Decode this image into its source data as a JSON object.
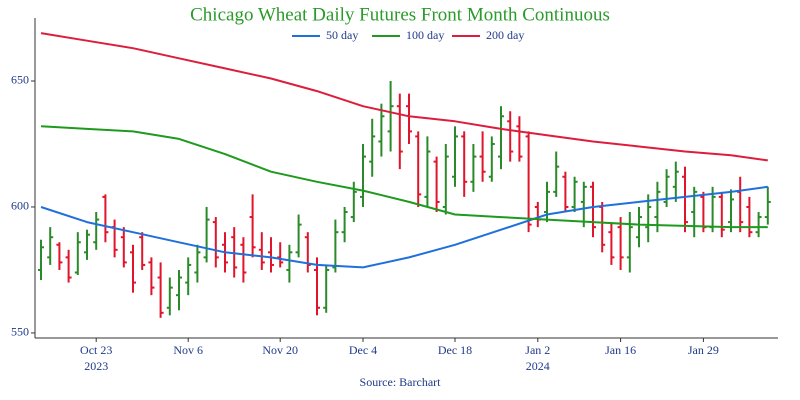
{
  "chart_data": {
    "type": "ohlc",
    "title": "Chicago Wheat Daily Futures Front Month Continuous",
    "source": "Source: Barchart",
    "up_color": "#2a8a2a",
    "down_color": "#e0142a",
    "categories": [
      "2023-10-13",
      "2023-10-16",
      "2023-10-17",
      "2023-10-18",
      "2023-10-19",
      "2023-10-20",
      "2023-10-23",
      "2023-10-24",
      "2023-10-25",
      "2023-10-26",
      "2023-10-27",
      "2023-10-30",
      "2023-10-31",
      "2023-11-01",
      "2023-11-02",
      "2023-11-03",
      "2023-11-06",
      "2023-11-07",
      "2023-11-08",
      "2023-11-09",
      "2023-11-10",
      "2023-11-13",
      "2023-11-14",
      "2023-11-15",
      "2023-11-16",
      "2023-11-17",
      "2023-11-20",
      "2023-11-21",
      "2023-11-22",
      "2023-11-24",
      "2023-11-27",
      "2023-11-28",
      "2023-11-29",
      "2023-11-30",
      "2023-12-01",
      "2023-12-04",
      "2023-12-05",
      "2023-12-06",
      "2023-12-07",
      "2023-12-08",
      "2023-12-11",
      "2023-12-12",
      "2023-12-13",
      "2023-12-14",
      "2023-12-15",
      "2023-12-18",
      "2023-12-19",
      "2023-12-20",
      "2023-12-21",
      "2023-12-22",
      "2023-12-26",
      "2023-12-27",
      "2023-12-28",
      "2023-12-29",
      "2024-01-02",
      "2024-01-03",
      "2024-01-04",
      "2024-01-05",
      "2024-01-08",
      "2024-01-09",
      "2024-01-10",
      "2024-01-11",
      "2024-01-12",
      "2024-01-16",
      "2024-01-17",
      "2024-01-18",
      "2024-01-19",
      "2024-01-22",
      "2024-01-23",
      "2024-01-24",
      "2024-01-25",
      "2024-01-26",
      "2024-01-29",
      "2024-01-30",
      "2024-01-31",
      "2024-02-01",
      "2024-02-02",
      "2024-02-05",
      "2024-02-06",
      "2024-02-07"
    ],
    "open": [
      575,
      580,
      585,
      580,
      574,
      582,
      586,
      604,
      592,
      588,
      582,
      588,
      578,
      572,
      560,
      565,
      570,
      574,
      580,
      594,
      585,
      588,
      585,
      596,
      583,
      582,
      580,
      575,
      582,
      588,
      575,
      560,
      576,
      590,
      596,
      604,
      618,
      626,
      630,
      640,
      640,
      628,
      604,
      618,
      600,
      612,
      628,
      610,
      620,
      612,
      620,
      634,
      632,
      628,
      600,
      598,
      606,
      612,
      600,
      602,
      608,
      600,
      590,
      592,
      580,
      588,
      592,
      596,
      602,
      608,
      612,
      598,
      604,
      592,
      604,
      594,
      606,
      600,
      590,
      596
    ],
    "high": [
      587,
      592,
      586,
      583,
      590,
      591,
      598,
      605,
      595,
      592,
      585,
      590,
      580,
      578,
      572,
      575,
      580,
      585,
      600,
      596,
      590,
      592,
      588,
      605,
      590,
      588,
      586,
      585,
      597,
      590,
      580,
      577,
      595,
      600,
      610,
      625,
      635,
      641,
      650,
      645,
      645,
      630,
      628,
      620,
      625,
      632,
      630,
      625,
      630,
      628,
      640,
      638,
      636,
      630,
      602,
      610,
      622,
      614,
      612,
      610,
      610,
      602,
      594,
      596,
      598,
      600,
      605,
      610,
      615,
      618,
      616,
      608,
      606,
      608,
      606,
      607,
      612,
      604,
      598,
      608
    ],
    "low": [
      571,
      577,
      575,
      570,
      573,
      579,
      583,
      586,
      580,
      576,
      566,
      575,
      565,
      556,
      557,
      559,
      565,
      570,
      578,
      576,
      574,
      572,
      570,
      580,
      575,
      574,
      576,
      570,
      580,
      574,
      557,
      558,
      574,
      586,
      594,
      600,
      612,
      620,
      622,
      615,
      625,
      600,
      600,
      598,
      597,
      608,
      604,
      606,
      610,
      610,
      615,
      618,
      618,
      590,
      592,
      594,
      604,
      598,
      598,
      592,
      588,
      582,
      577,
      575,
      574,
      584,
      586,
      590,
      600,
      602,
      590,
      588,
      590,
      590,
      588,
      590,
      590,
      588,
      588,
      593
    ],
    "close": [
      584,
      588,
      578,
      572,
      586,
      589,
      595,
      590,
      583,
      578,
      570,
      577,
      568,
      558,
      568,
      572,
      577,
      582,
      595,
      580,
      578,
      576,
      574,
      584,
      578,
      577,
      578,
      582,
      593,
      577,
      560,
      575,
      590,
      598,
      606,
      620,
      628,
      636,
      640,
      622,
      630,
      605,
      622,
      602,
      620,
      628,
      610,
      620,
      614,
      625,
      636,
      622,
      620,
      593,
      595,
      606,
      616,
      600,
      610,
      608,
      592,
      585,
      580,
      580,
      592,
      596,
      600,
      606,
      612,
      614,
      594,
      606,
      592,
      604,
      591,
      603,
      594,
      590,
      596,
      602
    ],
    "series": [
      {
        "name": "50 day",
        "color": "#1f6fdc",
        "x": [
          "2023-10-13",
          "2023-10-20",
          "2023-10-27",
          "2023-11-03",
          "2023-11-10",
          "2023-11-17",
          "2023-11-27",
          "2023-12-04",
          "2023-12-11",
          "2023-12-18",
          "2023-12-26",
          "2024-01-03",
          "2024-01-10",
          "2024-01-18",
          "2024-01-25",
          "2024-02-01",
          "2024-02-07"
        ],
        "values": [
          600,
          594,
          590,
          586,
          582,
          580,
          577,
          576,
          580,
          585,
          591,
          597,
          600,
          602,
          604,
          606,
          608
        ]
      },
      {
        "name": "100 day",
        "color": "#1e9a1e",
        "x": [
          "2023-10-13",
          "2023-10-20",
          "2023-10-27",
          "2023-11-03",
          "2023-11-10",
          "2023-11-17",
          "2023-11-27",
          "2023-12-04",
          "2023-12-11",
          "2023-12-18",
          "2023-12-26",
          "2024-01-03",
          "2024-01-10",
          "2024-01-18",
          "2024-01-25",
          "2024-02-01",
          "2024-02-07"
        ],
        "values": [
          632,
          631,
          630,
          627,
          621,
          614,
          610,
          606.5,
          602,
          597,
          596,
          595,
          594,
          593,
          592.5,
          592,
          592
        ]
      },
      {
        "name": "200 day",
        "color": "#dc1e3c",
        "x": [
          "2023-10-13",
          "2023-10-20",
          "2023-10-27",
          "2023-11-03",
          "2023-11-10",
          "2023-11-17",
          "2023-11-27",
          "2023-12-04",
          "2023-12-11",
          "2023-12-18",
          "2023-12-26",
          "2024-01-03",
          "2024-01-10",
          "2024-01-18",
          "2024-01-25",
          "2024-02-01",
          "2024-02-07"
        ],
        "values": [
          669,
          666,
          663,
          659,
          655,
          651,
          646,
          640,
          636,
          634,
          631,
          628.5,
          626,
          624,
          622,
          620.5,
          618.5
        ]
      }
    ],
    "ylim": [
      548,
      675
    ],
    "yticks": [
      550,
      600,
      650
    ],
    "xticks": [
      {
        "value": "2023-10-23",
        "label": "Oct 23",
        "year": "2023"
      },
      {
        "value": "2023-11-06",
        "label": "Nov 6"
      },
      {
        "value": "2023-11-20",
        "label": "Nov 20"
      },
      {
        "value": "2023-12-04",
        "label": "Dec 4"
      },
      {
        "value": "2023-12-18",
        "label": "Dec 18"
      },
      {
        "value": "2024-01-02",
        "label": "Jan 2",
        "year": "2024"
      },
      {
        "value": "2024-01-16",
        "label": "Jan 16"
      },
      {
        "value": "2024-01-29",
        "label": "Jan 29"
      }
    ],
    "legend": "top"
  }
}
